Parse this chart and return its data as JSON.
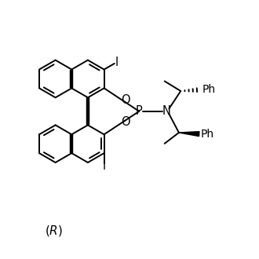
{
  "bg": "#ffffff",
  "lc": "#000000",
  "lw": 1.4,
  "blw": 3.2,
  "fs": 10.5,
  "figsize": [
    3.3,
    3.3
  ],
  "dpi": 100,
  "xlim": [
    -0.5,
    9.5
  ],
  "ylim": [
    0.5,
    10.5
  ]
}
